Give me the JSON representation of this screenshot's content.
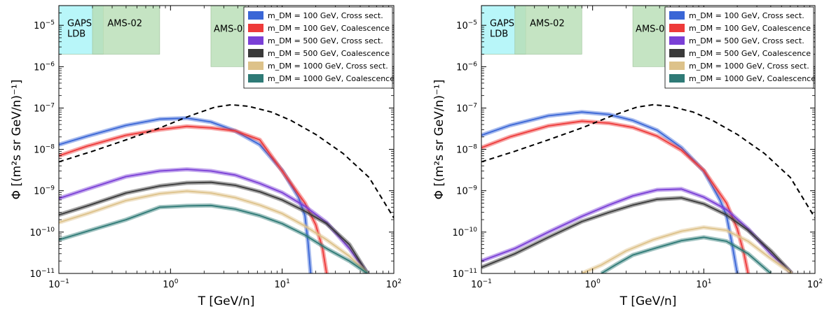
{
  "chart_data": [
    {
      "type": "line",
      "xscale": "log",
      "yscale": "log",
      "xlim": [
        0.1,
        100
      ],
      "ylim": [
        1e-11,
        3e-05
      ],
      "xlabel": "T [GeV/n]",
      "ylabel": "Φ [(m²s sr GeV/n)⁻¹]",
      "xticks": [
        "10⁻¹",
        "10⁰",
        "10¹",
        "10²"
      ],
      "yticks": [
        "10⁻¹¹",
        "10⁻¹⁰",
        "10⁻⁹",
        "10⁻⁸",
        "10⁻⁷",
        "10⁻⁶",
        "10⁻⁵"
      ],
      "legend_position": "top-right",
      "regions": [
        {
          "label": "GAPS LDB",
          "x": [
            0.1,
            0.25
          ],
          "y": [
            2e-06,
            3e-05
          ],
          "color": "#a6f4f8"
        },
        {
          "label": "AMS-02",
          "x": [
            0.2,
            0.8
          ],
          "y": [
            2e-06,
            3e-05
          ],
          "color": "#b7ddb4"
        },
        {
          "label": "AMS-02",
          "x": [
            2.3,
            4.7
          ],
          "y": [
            1e-06,
            3e-05
          ],
          "color": "#b7ddb4"
        }
      ],
      "series": [
        {
          "name": "m_DM = 100 GeV, Cross sect.",
          "color": "#3a66d6",
          "x": [
            0.1,
            0.18,
            0.4,
            0.8,
            1.4,
            2.3,
            3.8,
            6.3,
            10,
            14,
            16,
            17,
            18
          ],
          "y": [
            1.3e-08,
            2.1e-08,
            3.8e-08,
            5.4e-08,
            5.7e-08,
            4.6e-08,
            2.8e-08,
            1.3e-08,
            3.1e-09,
            7e-10,
            2.5e-10,
            6e-11,
            1e-11
          ]
        },
        {
          "name": "m_DM = 100 GeV, Coalescence",
          "color": "#ee3a3a",
          "x": [
            0.1,
            0.18,
            0.4,
            0.8,
            1.4,
            2.3,
            3.8,
            6.3,
            10,
            16,
            20,
            23,
            25
          ],
          "y": [
            7e-09,
            1.2e-08,
            2.2e-08,
            3e-08,
            3.6e-08,
            3.3e-08,
            2.8e-08,
            1.7e-08,
            3e-09,
            5e-10,
            1.5e-10,
            4e-11,
            1e-11
          ]
        },
        {
          "name": "m_DM = 500 GeV, Cross sect.",
          "color": "#7a3fd6",
          "x": [
            0.1,
            0.18,
            0.4,
            0.8,
            1.4,
            2.3,
            3.8,
            6.3,
            10,
            16,
            25,
            40,
            58
          ],
          "y": [
            6.5e-10,
            1.1e-09,
            2.2e-09,
            3e-09,
            3.3e-09,
            3e-09,
            2.4e-09,
            1.5e-09,
            9e-10,
            4.2e-10,
            1.7e-10,
            4e-11,
            1e-11
          ]
        },
        {
          "name": "m_DM = 500 GeV, Coalescence",
          "color": "#3a3a3a",
          "x": [
            0.1,
            0.18,
            0.4,
            0.8,
            1.4,
            2.3,
            3.8,
            6.3,
            10,
            16,
            25,
            40,
            58
          ],
          "y": [
            2.6e-10,
            4.3e-10,
            8.8e-10,
            1.3e-09,
            1.55e-09,
            1.6e-09,
            1.35e-09,
            9.5e-10,
            6e-10,
            3.2e-10,
            1.6e-10,
            5e-11,
            1e-11
          ]
        },
        {
          "name": "m_DM = 1000 GeV, Cross sect.",
          "color": "#ddc28a",
          "x": [
            0.1,
            0.18,
            0.4,
            0.8,
            1.4,
            2.3,
            3.8,
            6.3,
            10,
            16,
            25,
            40,
            58
          ],
          "y": [
            1.7e-10,
            2.8e-10,
            5.8e-10,
            8.5e-10,
            9.8e-10,
            8.8e-10,
            6.8e-10,
            4.5e-10,
            2.8e-10,
            1.4e-10,
            6.5e-11,
            2.6e-11,
            1e-11
          ]
        },
        {
          "name": "m_DM = 1000 GeV, Coalescence",
          "color": "#2e7a76",
          "x": [
            0.1,
            0.18,
            0.4,
            0.8,
            1.4,
            2.3,
            3.8,
            6.3,
            10,
            16,
            25,
            40,
            58
          ],
          "y": [
            6.5e-11,
            1.05e-10,
            2e-10,
            4e-10,
            4.3e-10,
            4.4e-10,
            3.6e-10,
            2.5e-10,
            1.6e-10,
            8.5e-11,
            4e-11,
            2e-11,
            1e-11
          ]
        },
        {
          "name": "",
          "color": "#000000",
          "dashed": true,
          "x": [
            0.1,
            0.2,
            0.4,
            0.8,
            1.5,
            2.5,
            3.5,
            5,
            8,
            12,
            20,
            35,
            60,
            100
          ],
          "y": [
            5e-09,
            9e-09,
            1.7e-08,
            3.3e-08,
            6.5e-08,
            1.05e-07,
            1.2e-07,
            1.1e-07,
            8e-08,
            5e-08,
            2.3e-08,
            8e-09,
            2.1e-09,
            2.2e-10
          ]
        }
      ]
    },
    {
      "type": "line",
      "xscale": "log",
      "yscale": "log",
      "xlim": [
        0.1,
        100
      ],
      "ylim": [
        1e-11,
        3e-05
      ],
      "xlabel": "T [GeV/n]",
      "ylabel": "Φ [(m²s sr GeV/n)⁻¹]",
      "xticks": [
        "10⁻¹",
        "10⁰",
        "10¹",
        "10²"
      ],
      "yticks": [
        "10⁻¹¹",
        "10⁻¹⁰",
        "10⁻⁹",
        "10⁻⁸",
        "10⁻⁷",
        "10⁻⁶",
        "10⁻⁵"
      ],
      "legend_position": "top-right",
      "regions": [
        {
          "label": "GAPS LDB",
          "x": [
            0.1,
            0.25
          ],
          "y": [
            2e-06,
            3e-05
          ],
          "color": "#a6f4f8"
        },
        {
          "label": "AMS-02",
          "x": [
            0.2,
            0.8
          ],
          "y": [
            2e-06,
            3e-05
          ],
          "color": "#b7ddb4"
        },
        {
          "label": "AMS-02",
          "x": [
            2.3,
            4.7
          ],
          "y": [
            1e-06,
            3e-05
          ],
          "color": "#b7ddb4"
        }
      ],
      "series": [
        {
          "name": "m_DM = 100 GeV, Cross sect.",
          "color": "#3a66d6",
          "x": [
            0.1,
            0.18,
            0.4,
            0.8,
            1.4,
            2.3,
            3.8,
            6.3,
            10,
            14,
            16,
            18,
            20
          ],
          "y": [
            2.2e-08,
            3.8e-08,
            6.5e-08,
            8e-08,
            7e-08,
            5e-08,
            2.9e-08,
            1.1e-08,
            3e-09,
            6e-10,
            2.5e-10,
            5e-11,
            1e-11
          ]
        },
        {
          "name": "m_DM = 100 GeV, Coalescence",
          "color": "#ee3a3a",
          "x": [
            0.1,
            0.18,
            0.4,
            0.8,
            1.4,
            2.3,
            3.8,
            6.3,
            10,
            16,
            20,
            23,
            25
          ],
          "y": [
            1.1e-08,
            2e-08,
            3.7e-08,
            4.8e-08,
            4.3e-08,
            3.4e-08,
            2.1e-08,
            9.5e-09,
            3.1e-09,
            5e-10,
            1.2e-10,
            3e-11,
            1e-11
          ]
        },
        {
          "name": "m_DM = 500 GeV, Cross sect.",
          "color": "#7a3fd6",
          "x": [
            0.1,
            0.2,
            0.4,
            0.8,
            1.4,
            2.3,
            3.8,
            6.3,
            10,
            16,
            25,
            40,
            62
          ],
          "y": [
            2e-11,
            4e-11,
            1e-10,
            2.4e-10,
            4.5e-10,
            7.5e-10,
            1.05e-09,
            1.1e-09,
            7e-10,
            3.5e-10,
            1.2e-10,
            3e-11,
            1e-11
          ]
        },
        {
          "name": "m_DM = 500 GeV, Coalescence",
          "color": "#3a3a3a",
          "x": [
            0.1,
            0.2,
            0.4,
            0.8,
            1.4,
            2.3,
            3.8,
            6.3,
            10,
            16,
            25,
            40,
            62
          ],
          "y": [
            1.4e-11,
            3e-11,
            7.5e-11,
            1.8e-10,
            3e-10,
            4.5e-10,
            6.2e-10,
            6.7e-10,
            4.8e-10,
            2.6e-10,
            1.1e-10,
            3.5e-11,
            1e-11
          ]
        },
        {
          "name": "m_DM = 1000 GeV, Cross sect.",
          "color": "#ddc28a",
          "x": [
            0.8,
            1.2,
            2,
            3.5,
            6.3,
            10,
            16,
            25,
            40,
            62
          ],
          "y": [
            1e-11,
            1.6e-11,
            3.5e-11,
            6.5e-11,
            1.05e-10,
            1.3e-10,
            1.1e-10,
            6e-11,
            2.3e-11,
            1e-11
          ]
        },
        {
          "name": "m_DM = 1000 GeV, Coalescence",
          "color": "#2e7a76",
          "x": [
            1.2,
            1.6,
            2.3,
            3.8,
            6.3,
            10,
            16,
            25,
            40
          ],
          "y": [
            1e-11,
            1.6e-11,
            2.8e-11,
            4.2e-11,
            6.2e-11,
            7.5e-11,
            6e-11,
            3e-11,
            1e-11
          ]
        },
        {
          "name": "",
          "color": "#000000",
          "dashed": true,
          "x": [
            0.1,
            0.2,
            0.4,
            0.8,
            1.5,
            2.5,
            3.5,
            5,
            8,
            12,
            20,
            35,
            60,
            100
          ],
          "y": [
            5e-09,
            9e-09,
            1.7e-08,
            3.3e-08,
            6.5e-08,
            1.05e-07,
            1.2e-07,
            1.1e-07,
            8e-08,
            5e-08,
            2.3e-08,
            8e-09,
            2.1e-09,
            2.2e-10
          ]
        }
      ]
    }
  ]
}
